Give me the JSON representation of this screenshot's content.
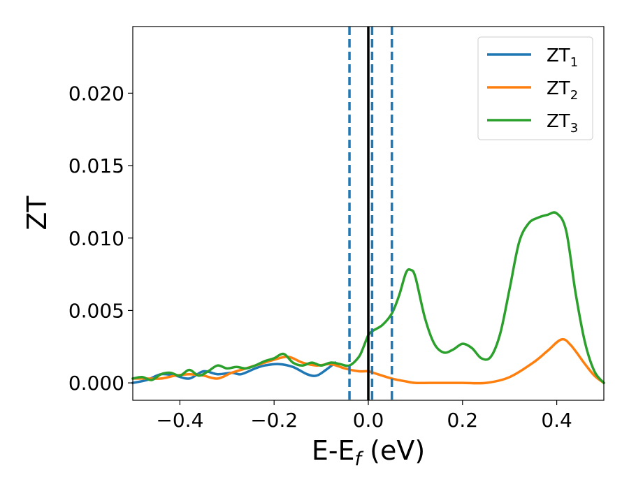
{
  "chart_data": {
    "type": "line",
    "title": "",
    "xlabel": "E-E",
    "xlabel_sub": "f",
    "xlabel_unit": " (eV)",
    "ylabel": "ZT",
    "xlim": [
      -0.5,
      0.5
    ],
    "ylim": [
      -0.0012,
      0.0246
    ],
    "xticks": [
      -0.4,
      -0.2,
      0.0,
      0.2,
      0.4
    ],
    "xtick_labels": [
      "−0.4",
      "−0.2",
      "0.0",
      "0.2",
      "0.4"
    ],
    "yticks": [
      0.0,
      0.005,
      0.01,
      0.015,
      0.02
    ],
    "ytick_labels": [
      "0.000",
      "0.005",
      "0.010",
      "0.015",
      "0.020"
    ],
    "grid": false,
    "legend_position": "top-right",
    "vlines": [
      {
        "x": 0.0,
        "style": "solid",
        "color": "#000000"
      },
      {
        "x": -0.04,
        "style": "dashed",
        "color": "#1f77b4"
      },
      {
        "x": 0.008,
        "style": "dashed",
        "color": "#1f77b4"
      },
      {
        "x": 0.05,
        "style": "dashed",
        "color": "#1f77b4"
      }
    ],
    "series": [
      {
        "name": "ZT",
        "name_sub": "1",
        "color": "#1f77b4",
        "x": [
          -0.5,
          -0.47,
          -0.44,
          -0.41,
          -0.38,
          -0.35,
          -0.32,
          -0.29,
          -0.27,
          -0.24,
          -0.22,
          -0.19,
          -0.16,
          -0.13,
          -0.11,
          -0.09,
          -0.07
        ],
        "y": [
          0.0,
          0.0002,
          0.0006,
          0.0005,
          0.0003,
          0.0008,
          0.0006,
          0.0007,
          0.0006,
          0.001,
          0.0012,
          0.0013,
          0.0011,
          0.0006,
          0.0005,
          0.0009,
          0.0014
        ]
      },
      {
        "name": "ZT",
        "name_sub": "2",
        "color": "#ff7f0e",
        "x": [
          -0.5,
          -0.47,
          -0.44,
          -0.41,
          -0.38,
          -0.35,
          -0.32,
          -0.29,
          -0.26,
          -0.23,
          -0.2,
          -0.17,
          -0.14,
          -0.11,
          -0.08,
          -0.05,
          -0.02,
          0.0,
          0.02,
          0.05,
          0.08,
          0.1,
          0.13,
          0.16,
          0.2,
          0.25,
          0.3,
          0.35,
          0.38,
          0.41,
          0.43,
          0.46,
          0.48,
          0.5
        ],
        "y": [
          0.0003,
          0.0003,
          0.0003,
          0.0005,
          0.0006,
          0.0005,
          0.0003,
          0.0007,
          0.001,
          0.0013,
          0.0016,
          0.0018,
          0.0014,
          0.0012,
          0.0013,
          0.001,
          0.0008,
          0.0008,
          0.0006,
          0.0003,
          0.0001,
          0.0,
          0.0,
          0.0,
          0.0,
          0.0,
          0.0004,
          0.0014,
          0.0022,
          0.003,
          0.0026,
          0.0013,
          0.0005,
          0.0
        ]
      },
      {
        "name": "ZT",
        "name_sub": "3",
        "color": "#2ca02c",
        "x": [
          -0.5,
          -0.48,
          -0.46,
          -0.44,
          -0.42,
          -0.4,
          -0.38,
          -0.36,
          -0.34,
          -0.32,
          -0.3,
          -0.28,
          -0.26,
          -0.24,
          -0.22,
          -0.2,
          -0.18,
          -0.16,
          -0.14,
          -0.12,
          -0.1,
          -0.08,
          -0.06,
          -0.04,
          -0.02,
          -0.01,
          0.0,
          0.01,
          0.03,
          0.05,
          0.065,
          0.08,
          0.09,
          0.1,
          0.12,
          0.14,
          0.16,
          0.18,
          0.2,
          0.22,
          0.24,
          0.26,
          0.28,
          0.3,
          0.32,
          0.34,
          0.36,
          0.38,
          0.4,
          0.42,
          0.44,
          0.46,
          0.48,
          0.5
        ],
        "y": [
          0.0003,
          0.0004,
          0.0002,
          0.0006,
          0.0007,
          0.0005,
          0.0009,
          0.0005,
          0.0008,
          0.0012,
          0.001,
          0.0011,
          0.001,
          0.0012,
          0.0015,
          0.0017,
          0.002,
          0.0014,
          0.0012,
          0.0014,
          0.0012,
          0.0014,
          0.0013,
          0.0012,
          0.0018,
          0.0025,
          0.0033,
          0.0036,
          0.004,
          0.0048,
          0.006,
          0.0076,
          0.0078,
          0.0073,
          0.0045,
          0.0027,
          0.0021,
          0.0023,
          0.0027,
          0.0024,
          0.0017,
          0.0018,
          0.0034,
          0.0065,
          0.0097,
          0.011,
          0.0114,
          0.0116,
          0.0117,
          0.0105,
          0.0062,
          0.0028,
          0.0008,
          0.0
        ]
      }
    ]
  }
}
